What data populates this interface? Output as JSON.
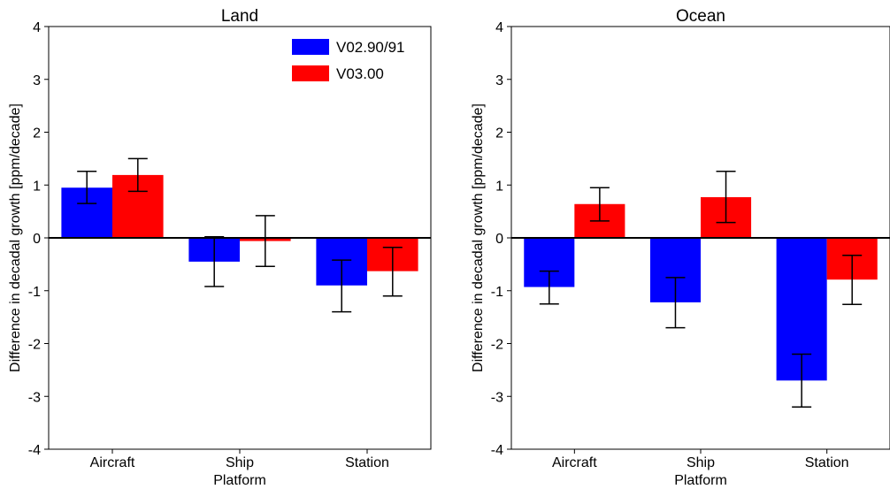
{
  "chart_data": [
    {
      "type": "bar",
      "title": "Land",
      "xlabel": "Platform",
      "ylabel": "Difference in decadal growth [ppm/decade]",
      "categories": [
        "Aircraft",
        "Ship",
        "Station"
      ],
      "ylim": [
        -4,
        4
      ],
      "yticks": [
        -4,
        -3,
        -2,
        -1,
        0,
        1,
        2,
        3,
        4
      ],
      "grid": false,
      "zero_line": true,
      "legend": "top-right",
      "series": [
        {
          "name": "V02.90/91",
          "color": "#0000ff",
          "values": [
            0.95,
            -0.45,
            -0.9
          ],
          "err_low": [
            0.65,
            -0.92,
            -1.4
          ],
          "err_high": [
            1.26,
            0.02,
            -0.42
          ]
        },
        {
          "name": "V03.00",
          "color": "#ff0000",
          "values": [
            1.19,
            -0.06,
            -0.63
          ],
          "err_low": [
            0.88,
            -0.54,
            -1.1
          ],
          "err_high": [
            1.5,
            0.42,
            -0.18
          ]
        }
      ]
    },
    {
      "type": "bar",
      "title": "Ocean",
      "xlabel": "Platform",
      "ylabel": "Difference in decadal growth [ppm/decade]",
      "categories": [
        "Aircraft",
        "Ship",
        "Station"
      ],
      "ylim": [
        -4,
        4
      ],
      "yticks": [
        -4,
        -3,
        -2,
        -1,
        0,
        1,
        2,
        3,
        4
      ],
      "grid": false,
      "zero_line": true,
      "legend": "none",
      "series": [
        {
          "name": "V02.90/91",
          "color": "#0000ff",
          "values": [
            -0.93,
            -1.22,
            -2.7
          ],
          "err_low": [
            -1.25,
            -1.7,
            -3.2
          ],
          "err_high": [
            -0.63,
            -0.75,
            -2.2
          ]
        },
        {
          "name": "V03.00",
          "color": "#ff0000",
          "values": [
            0.64,
            0.77,
            -0.79
          ],
          "err_low": [
            0.32,
            0.29,
            -1.26
          ],
          "err_high": [
            0.95,
            1.26,
            -0.33
          ]
        }
      ]
    }
  ]
}
